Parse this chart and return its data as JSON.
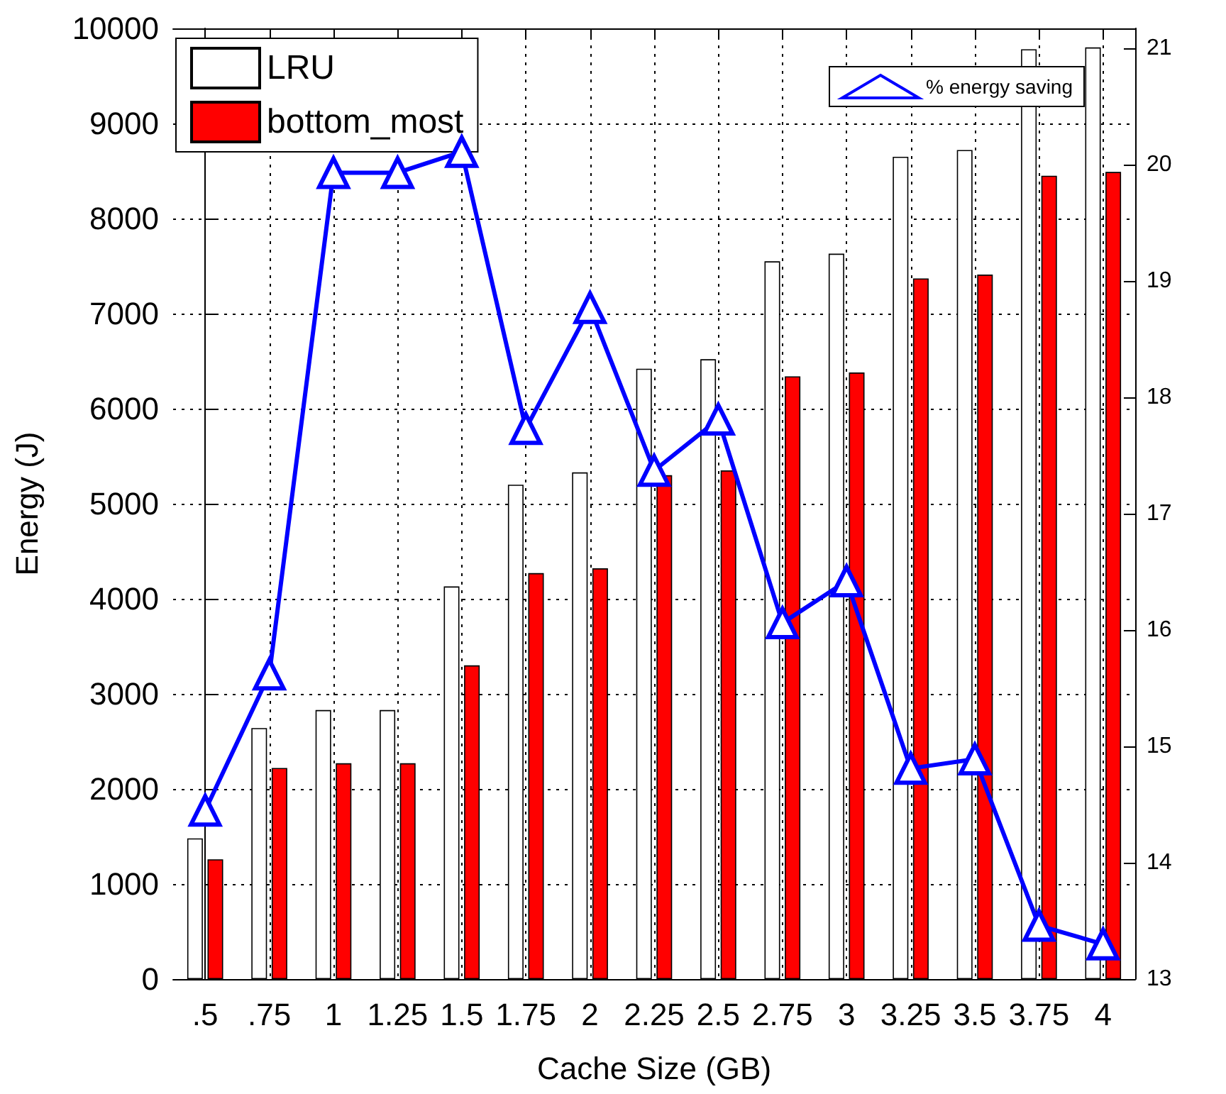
{
  "chart_data": {
    "type": "bar",
    "xlabel": "Cache Size (GB)",
    "ylabel": "Energy (J)",
    "categories": [
      ".5",
      ".75",
      "1",
      "1.25",
      "1.5",
      "1.75",
      "2",
      "2.25",
      "2.5",
      "2.75",
      "3",
      "3.25",
      "3.5",
      "3.75",
      "4"
    ],
    "series": [
      {
        "name": "LRU",
        "color": "#ffffff",
        "values": [
          1480,
          2640,
          2830,
          2830,
          4130,
          5200,
          5330,
          6420,
          6520,
          7550,
          7630,
          8650,
          8720,
          9780,
          9800
        ]
      },
      {
        "name": "bottom_most",
        "color": "#ff0000",
        "values": [
          1260,
          2220,
          2270,
          2270,
          3300,
          4270,
          4320,
          5300,
          5350,
          6340,
          6380,
          7370,
          7410,
          8450,
          8490
        ]
      },
      {
        "name": "% energy saving",
        "type": "line",
        "axis": "y2",
        "color": "#0000ff",
        "marker": "triangle",
        "values": [
          14.45,
          15.62,
          19.93,
          19.93,
          20.11,
          17.73,
          18.77,
          17.37,
          17.81,
          16.06,
          16.42,
          14.81,
          14.89,
          13.46,
          13.3
        ]
      }
    ],
    "ylim": [
      0,
      10000
    ],
    "yticks": [
      0,
      1000,
      2000,
      3000,
      4000,
      5000,
      6000,
      7000,
      8000,
      9000,
      10000
    ],
    "y2lim": [
      13,
      21.17
    ],
    "y2ticks": [
      13,
      14,
      15,
      16,
      17,
      18,
      19,
      20,
      21
    ],
    "grid": true,
    "legend": "top",
    "line_style": "solid"
  }
}
